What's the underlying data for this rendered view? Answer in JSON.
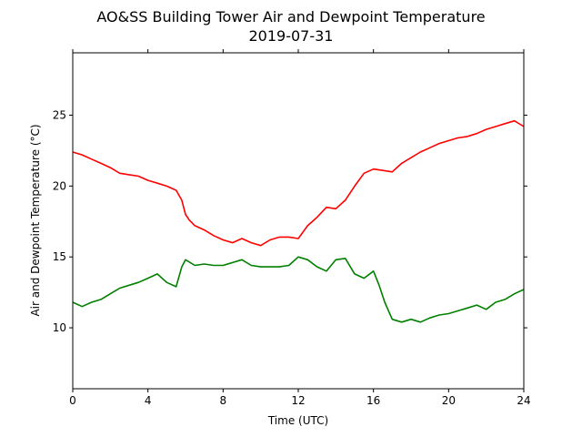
{
  "chart_data": {
    "type": "line",
    "title": "AO&SS Building Tower Air and Dewpoint Temperature",
    "subtitle": "2019-07-31",
    "xlabel": "Time (UTC)",
    "ylabel": "Air and Dewpoint Temperature (°C)",
    "xlim": [
      0,
      24
    ],
    "ylim": [
      5.7,
      29.4
    ],
    "x_ticks": [
      0,
      4,
      8,
      12,
      16,
      20,
      24
    ],
    "y_ticks": [
      10,
      15,
      20,
      25
    ],
    "grid": false,
    "legend": "none",
    "series": [
      {
        "color": "#ff0000",
        "x": [
          0,
          0.5,
          1,
          1.5,
          2,
          2.5,
          3,
          3.5,
          4,
          4.5,
          5,
          5.5,
          5.8,
          6.0,
          6.2,
          6.5,
          7,
          7.5,
          8,
          8.5,
          9,
          9.5,
          10,
          10.5,
          11,
          11.5,
          12,
          12.5,
          13,
          13.5,
          14,
          14.5,
          15,
          15.5,
          16,
          16.5,
          17,
          17.5,
          18,
          18.5,
          19,
          19.5,
          20,
          20.5,
          21,
          21.5,
          22,
          22.5,
          23,
          23.5,
          24
        ],
        "y": [
          22.4,
          22.2,
          21.9,
          21.6,
          21.3,
          20.9,
          20.8,
          20.7,
          20.4,
          20.2,
          20.0,
          19.7,
          19.0,
          18.0,
          17.6,
          17.2,
          16.9,
          16.5,
          16.2,
          16.0,
          16.3,
          16.0,
          15.8,
          16.2,
          16.4,
          16.4,
          16.3,
          17.2,
          17.8,
          18.5,
          18.4,
          19.0,
          20.0,
          20.9,
          21.2,
          21.1,
          21.0,
          21.6,
          22.0,
          22.4,
          22.7,
          23.0,
          23.2,
          23.4,
          23.5,
          23.7,
          24.0,
          24.2,
          24.4,
          24.6,
          24.2
        ]
      },
      {
        "color": "#008000",
        "x": [
          0,
          0.5,
          1,
          1.5,
          2,
          2.5,
          3,
          3.5,
          4,
          4.5,
          5,
          5.5,
          5.8,
          6.0,
          6.5,
          7,
          7.5,
          8,
          8.5,
          9,
          9.5,
          10,
          10.5,
          11,
          11.5,
          12,
          12.5,
          13,
          13.5,
          14,
          14.5,
          15,
          15.5,
          16,
          16.3,
          16.6,
          17,
          17.5,
          18,
          18.5,
          19,
          19.5,
          20,
          20.5,
          21,
          21.5,
          22,
          22.5,
          23,
          23.5,
          24
        ],
        "y": [
          11.8,
          11.5,
          11.8,
          12.0,
          12.4,
          12.8,
          13.0,
          13.2,
          13.5,
          13.8,
          13.2,
          12.9,
          14.3,
          14.8,
          14.4,
          14.5,
          14.4,
          14.4,
          14.6,
          14.8,
          14.4,
          14.3,
          14.3,
          14.3,
          14.4,
          15.0,
          14.8,
          14.3,
          14.0,
          14.8,
          14.9,
          13.8,
          13.5,
          14.0,
          13.0,
          11.8,
          10.6,
          10.4,
          10.6,
          10.4,
          10.7,
          10.9,
          11.0,
          11.2,
          11.4,
          11.6,
          11.3,
          11.8,
          12.0,
          12.4,
          12.7
        ]
      }
    ]
  }
}
